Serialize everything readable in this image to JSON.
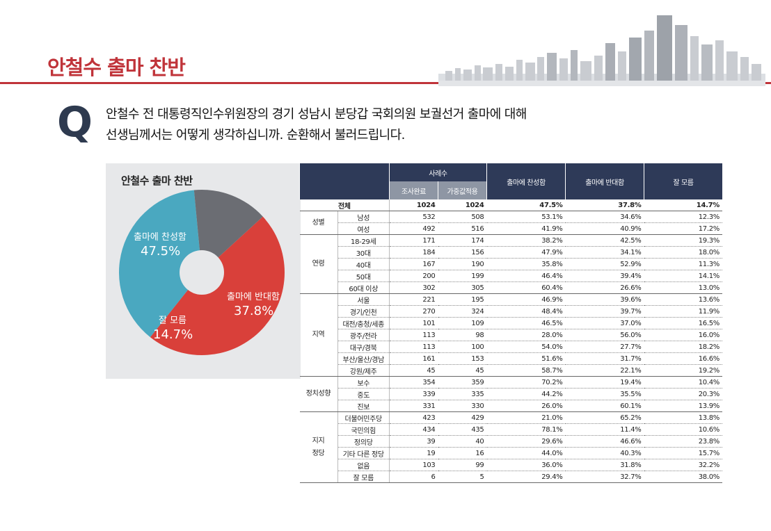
{
  "page_title": "안철수 출마 찬반",
  "question": {
    "mark": "Q",
    "line1": "안철수 전 대통령직인수위원장의 경기 성남시 분당갑 국회의원 보궐선거 출마에 대해",
    "line2": "선생님께서는 어떻게 생각하십니까. 순환해서 불러드립니다."
  },
  "chart_data": {
    "type": "pie",
    "title": "안철수 출마 찬반",
    "slices": [
      {
        "label": "출마에 찬성함",
        "display": "47.5%",
        "value": 47.5,
        "color": "#d9403a"
      },
      {
        "label": "출마에 반대함",
        "display": "37.8%",
        "value": 37.8,
        "color": "#4aa8c0"
      },
      {
        "label": "잘 모름",
        "display": "14.7%",
        "value": 14.7,
        "color": "#6b6d73"
      }
    ]
  },
  "table": {
    "header": {
      "sample": "사례수",
      "completed": "조사완료",
      "weighted": "가중값적용",
      "favor": "출마에 찬성함",
      "oppose": "출마에 반대함",
      "unknown": "잘 모름"
    },
    "total": {
      "label": "전체",
      "n": "1024",
      "w": "1024",
      "a": "47.5%",
      "b": "37.8%",
      "c": "14.7%"
    },
    "groups": [
      {
        "name": "성별",
        "rows": [
          {
            "label": "남성",
            "n": "532",
            "w": "508",
            "a": "53.1%",
            "b": "34.6%",
            "c": "12.3%"
          },
          {
            "label": "여성",
            "n": "492",
            "w": "516",
            "a": "41.9%",
            "b": "40.9%",
            "c": "17.2%"
          }
        ]
      },
      {
        "name": "연령",
        "rows": [
          {
            "label": "18-29세",
            "n": "171",
            "w": "174",
            "a": "38.2%",
            "b": "42.5%",
            "c": "19.3%"
          },
          {
            "label": "30대",
            "n": "184",
            "w": "156",
            "a": "47.9%",
            "b": "34.1%",
            "c": "18.0%"
          },
          {
            "label": "40대",
            "n": "167",
            "w": "190",
            "a": "35.8%",
            "b": "52.9%",
            "c": "11.3%"
          },
          {
            "label": "50대",
            "n": "200",
            "w": "199",
            "a": "46.4%",
            "b": "39.4%",
            "c": "14.1%"
          },
          {
            "label": "60대 이상",
            "n": "302",
            "w": "305",
            "a": "60.4%",
            "b": "26.6%",
            "c": "13.0%"
          }
        ]
      },
      {
        "name": "지역",
        "rows": [
          {
            "label": "서울",
            "n": "221",
            "w": "195",
            "a": "46.9%",
            "b": "39.6%",
            "c": "13.6%"
          },
          {
            "label": "경기/인천",
            "n": "270",
            "w": "324",
            "a": "48.4%",
            "b": "39.7%",
            "c": "11.9%"
          },
          {
            "label": "대전/충청/세종",
            "n": "101",
            "w": "109",
            "a": "46.5%",
            "b": "37.0%",
            "c": "16.5%"
          },
          {
            "label": "광주/전라",
            "n": "113",
            "w": "98",
            "a": "28.0%",
            "b": "56.0%",
            "c": "16.0%"
          },
          {
            "label": "대구/경북",
            "n": "113",
            "w": "100",
            "a": "54.0%",
            "b": "27.7%",
            "c": "18.2%"
          },
          {
            "label": "부산/울산/경남",
            "n": "161",
            "w": "153",
            "a": "51.6%",
            "b": "31.7%",
            "c": "16.6%"
          },
          {
            "label": "강원/제주",
            "n": "45",
            "w": "45",
            "a": "58.7%",
            "b": "22.1%",
            "c": "19.2%"
          }
        ]
      },
      {
        "name": "정치성향",
        "rows": [
          {
            "label": "보수",
            "n": "354",
            "w": "359",
            "a": "70.2%",
            "b": "19.4%",
            "c": "10.4%"
          },
          {
            "label": "중도",
            "n": "339",
            "w": "335",
            "a": "44.2%",
            "b": "35.5%",
            "c": "20.3%"
          },
          {
            "label": "진보",
            "n": "331",
            "w": "330",
            "a": "26.0%",
            "b": "60.1%",
            "c": "13.9%"
          }
        ]
      },
      {
        "name": "지지\n정당",
        "rows": [
          {
            "label": "더불어민주당",
            "n": "423",
            "w": "429",
            "a": "21.0%",
            "b": "65.2%",
            "c": "13.8%"
          },
          {
            "label": "국민의힘",
            "n": "434",
            "w": "435",
            "a": "78.1%",
            "b": "11.4%",
            "c": "10.6%"
          },
          {
            "label": "정의당",
            "n": "39",
            "w": "40",
            "a": "29.6%",
            "b": "46.6%",
            "c": "23.8%"
          },
          {
            "label": "기타 다른 정당",
            "n": "19",
            "w": "16",
            "a": "44.0%",
            "b": "40.3%",
            "c": "15.7%"
          },
          {
            "label": "없음",
            "n": "103",
            "w": "99",
            "a": "36.0%",
            "b": "31.8%",
            "c": "32.2%"
          },
          {
            "label": "잘 모름",
            "n": "6",
            "w": "5",
            "a": "29.4%",
            "b": "32.7%",
            "c": "38.0%"
          }
        ]
      }
    ]
  }
}
